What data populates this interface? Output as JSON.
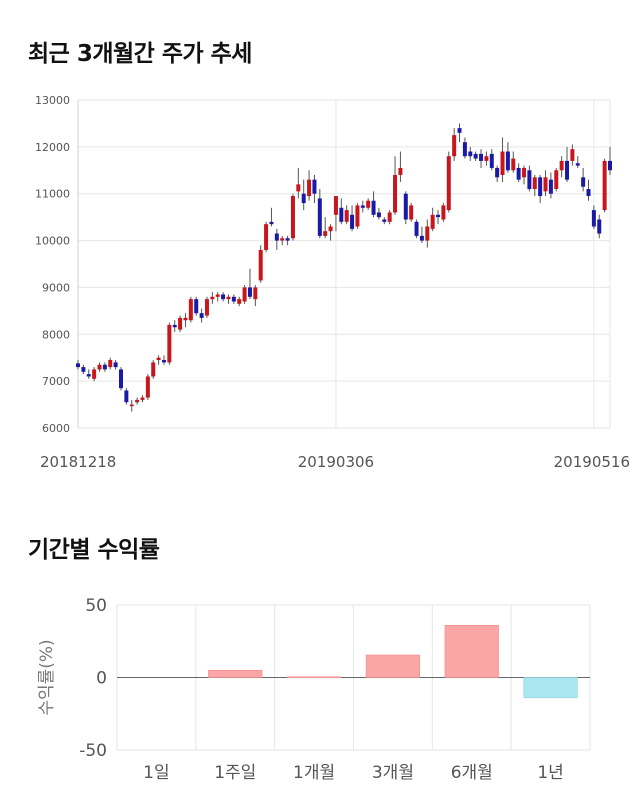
{
  "sections": {
    "price_title": "최근 3개월간 주가 추세",
    "return_title": "기간별 수익률"
  },
  "colors": {
    "up": "#c8161d",
    "down": "#1a1aa6",
    "pos_bar": "#fba6a6",
    "neg_bar": "#a9e6ef",
    "grid": "#e6e6e6"
  },
  "chart_data": [
    {
      "type": "candlestick",
      "title": "최근 3개월간 주가 추세",
      "ylim": [
        6000,
        13000
      ],
      "yticks": [
        6000,
        7000,
        8000,
        9000,
        10000,
        11000,
        12000,
        13000
      ],
      "xtick_labels": [
        {
          "index": 0,
          "label": "20181218"
        },
        {
          "index": 48,
          "label": "20190306"
        },
        {
          "index": 96,
          "label": "20190516"
        }
      ],
      "candles": [
        [
          7380,
          7450,
          7250,
          7300
        ],
        [
          7300,
          7350,
          7150,
          7200
        ],
        [
          7150,
          7250,
          7050,
          7100
        ],
        [
          7050,
          7300,
          7000,
          7250
        ],
        [
          7250,
          7400,
          7200,
          7350
        ],
        [
          7350,
          7400,
          7200,
          7250
        ],
        [
          7300,
          7500,
          7250,
          7450
        ],
        [
          7400,
          7450,
          7250,
          7300
        ],
        [
          7250,
          7300,
          6800,
          6850
        ],
        [
          6800,
          6850,
          6500,
          6550
        ],
        [
          6500,
          6600,
          6350,
          6500
        ],
        [
          6550,
          6650,
          6500,
          6600
        ],
        [
          6600,
          6700,
          6550,
          6650
        ],
        [
          6650,
          7150,
          6600,
          7100
        ],
        [
          7100,
          7450,
          7050,
          7400
        ],
        [
          7450,
          7550,
          7350,
          7500
        ],
        [
          7450,
          7550,
          7350,
          7400
        ],
        [
          7400,
          8250,
          7350,
          8200
        ],
        [
          8200,
          8300,
          8050,
          8150
        ],
        [
          8100,
          8400,
          8050,
          8350
        ],
        [
          8300,
          8450,
          8150,
          8350
        ],
        [
          8300,
          8800,
          8250,
          8750
        ],
        [
          8750,
          8800,
          8400,
          8450
        ],
        [
          8450,
          8550,
          8250,
          8350
        ],
        [
          8400,
          8800,
          8350,
          8750
        ],
        [
          8750,
          8900,
          8650,
          8800
        ],
        [
          8800,
          8900,
          8700,
          8850
        ],
        [
          8850,
          8900,
          8700,
          8750
        ],
        [
          8750,
          8850,
          8650,
          8800
        ],
        [
          8800,
          8850,
          8650,
          8700
        ],
        [
          8650,
          8800,
          8600,
          8750
        ],
        [
          8700,
          9050,
          8650,
          9000
        ],
        [
          9000,
          9400,
          8750,
          8800
        ],
        [
          8750,
          9050,
          8600,
          9000
        ],
        [
          9150,
          9900,
          9100,
          9800
        ],
        [
          9800,
          10400,
          9750,
          10350
        ],
        [
          10400,
          10700,
          10300,
          10350
        ],
        [
          10150,
          10250,
          9800,
          10000
        ],
        [
          10000,
          10100,
          9900,
          10050
        ],
        [
          10050,
          10100,
          9900,
          10000
        ],
        [
          10050,
          11000,
          10000,
          10950
        ],
        [
          11050,
          11550,
          10900,
          11200
        ],
        [
          11000,
          11300,
          10650,
          10800
        ],
        [
          10950,
          11500,
          10850,
          11300
        ],
        [
          11300,
          11400,
          10800,
          11000
        ],
        [
          10900,
          11100,
          10050,
          10100
        ],
        [
          10100,
          10500,
          10050,
          10200
        ],
        [
          10200,
          10350,
          10000,
          10300
        ],
        [
          10550,
          10950,
          10200,
          10950
        ],
        [
          10700,
          10900,
          10350,
          10400
        ],
        [
          10400,
          10750,
          10350,
          10650
        ],
        [
          10550,
          10750,
          10200,
          10250
        ],
        [
          10300,
          10800,
          10250,
          10750
        ],
        [
          10750,
          10850,
          10600,
          10700
        ],
        [
          10700,
          10900,
          10650,
          10850
        ],
        [
          10850,
          11050,
          10500,
          10550
        ],
        [
          10600,
          10700,
          10450,
          10500
        ],
        [
          10450,
          10500,
          10350,
          10400
        ],
        [
          10400,
          10650,
          10350,
          10600
        ],
        [
          10600,
          11800,
          10550,
          11400
        ],
        [
          11400,
          11900,
          11250,
          11550
        ],
        [
          11000,
          11050,
          10350,
          10450
        ],
        [
          10450,
          10800,
          10400,
          10750
        ],
        [
          10400,
          10450,
          10050,
          10100
        ],
        [
          10100,
          10300,
          9950,
          10000
        ],
        [
          10000,
          10450,
          9850,
          10300
        ],
        [
          10250,
          10700,
          10200,
          10550
        ],
        [
          10550,
          10650,
          10350,
          10500
        ],
        [
          10450,
          10800,
          10400,
          10750
        ],
        [
          10650,
          11900,
          10600,
          11800
        ],
        [
          11800,
          12400,
          11700,
          12250
        ],
        [
          12400,
          12500,
          12100,
          12300
        ],
        [
          12100,
          12200,
          11750,
          11800
        ],
        [
          11900,
          12000,
          11700,
          11800
        ],
        [
          11850,
          11900,
          11700,
          11750
        ],
        [
          11850,
          11950,
          11550,
          11700
        ],
        [
          11700,
          11900,
          11600,
          11800
        ],
        [
          11850,
          11950,
          11500,
          11550
        ],
        [
          11550,
          11600,
          11250,
          11350
        ],
        [
          11400,
          12200,
          11250,
          11900
        ],
        [
          11900,
          12100,
          11450,
          11500
        ],
        [
          11500,
          11900,
          11450,
          11750
        ],
        [
          11550,
          11650,
          11250,
          11300
        ],
        [
          11350,
          11600,
          11200,
          11550
        ],
        [
          11500,
          11600,
          11050,
          11100
        ],
        [
          11100,
          11400,
          10950,
          11350
        ],
        [
          11350,
          11400,
          10800,
          10950
        ],
        [
          11050,
          11500,
          10950,
          11350
        ],
        [
          11300,
          11450,
          10900,
          11000
        ],
        [
          11100,
          11550,
          11050,
          11500
        ],
        [
          11500,
          11800,
          11350,
          11700
        ],
        [
          11700,
          12000,
          11250,
          11300
        ],
        [
          11700,
          12050,
          11600,
          11950
        ],
        [
          11650,
          11800,
          11550,
          11600
        ],
        [
          11350,
          11550,
          11050,
          11150
        ],
        [
          11100,
          11300,
          10850,
          10950
        ],
        [
          10650,
          10750,
          10250,
          10300
        ],
        [
          10450,
          10550,
          10050,
          10150
        ],
        [
          10650,
          11750,
          10600,
          11700
        ],
        [
          11700,
          12000,
          11400,
          11500
        ]
      ]
    },
    {
      "type": "bar",
      "title": "기간별 수익률",
      "ylabel": "수익률(%)",
      "ylim": [
        -50,
        50
      ],
      "yticks": [
        -50,
        0,
        50
      ],
      "categories": [
        "1일",
        "1주일",
        "1개월",
        "3개월",
        "6개월",
        "1년"
      ],
      "values": [
        0,
        5,
        0.5,
        15.5,
        36,
        -14
      ]
    }
  ]
}
